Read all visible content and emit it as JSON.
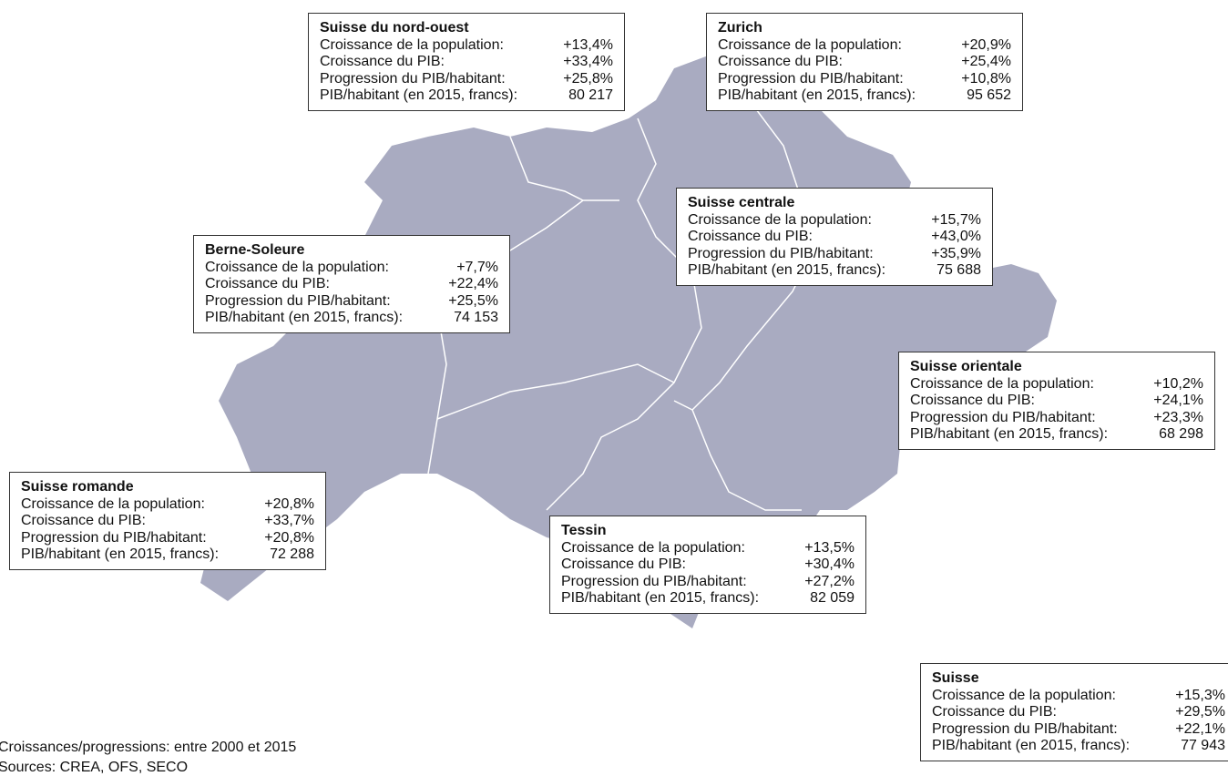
{
  "regions": [
    {
      "title": "Suisse du nord-ouest",
      "rows": [
        [
          "Croissance de la population:",
          "+13,4%"
        ],
        [
          "Croissance du PIB:",
          "+33,4%"
        ],
        [
          "Progression du PIB/habitant:",
          "+25,8%"
        ],
        [
          "PIB/habitant (en 2015, francs):",
          "80 217"
        ]
      ]
    },
    {
      "title": "Zurich",
      "rows": [
        [
          "Croissance de la population:",
          "+20,9%"
        ],
        [
          "Croissance du PIB:",
          "+25,4%"
        ],
        [
          "Progression du PIB/habitant:",
          "+10,8%"
        ],
        [
          "PIB/habitant (en 2015, francs):",
          "95 652"
        ]
      ]
    },
    {
      "title": "Suisse centrale",
      "rows": [
        [
          "Croissance de la population:",
          "+15,7%"
        ],
        [
          "Croissance du PIB:",
          "+43,0%"
        ],
        [
          "Progression du PIB/habitant:",
          "+35,9%"
        ],
        [
          "PIB/habitant (en 2015, francs):",
          "75 688"
        ]
      ]
    },
    {
      "title": "Berne-Soleure",
      "rows": [
        [
          "Croissance de la population:",
          "+7,7%"
        ],
        [
          "Croissance du PIB:",
          "+22,4%"
        ],
        [
          "Progression du PIB/habitant:",
          "+25,5%"
        ],
        [
          "PIB/habitant (en 2015, francs):",
          "74 153"
        ]
      ]
    },
    {
      "title": "Suisse orientale",
      "rows": [
        [
          "Croissance de la population:",
          "+10,2%"
        ],
        [
          "Croissance du PIB:",
          "+24,1%"
        ],
        [
          "Progression du PIB/habitant:",
          "+23,3%"
        ],
        [
          "PIB/habitant (en 2015, francs):",
          "68 298"
        ]
      ]
    },
    {
      "title": "Suisse romande",
      "rows": [
        [
          "Croissance de la population:",
          "+20,8%"
        ],
        [
          "Croissance du PIB:",
          "+33,7%"
        ],
        [
          "Progression du PIB/habitant:",
          "+20,8%"
        ],
        [
          "PIB/habitant (en 2015, francs):",
          "72 288"
        ]
      ]
    },
    {
      "title": "Tessin",
      "rows": [
        [
          "Croissance de la population:",
          "+13,5%"
        ],
        [
          "Croissance du PIB:",
          "+30,4%"
        ],
        [
          "Progression du PIB/habitant:",
          "+27,2%"
        ],
        [
          "PIB/habitant (en 2015, francs):",
          "82 059"
        ]
      ]
    },
    {
      "title": "Suisse",
      "rows": [
        [
          "Croissance de la population:",
          "+15,3%"
        ],
        [
          "Croissance du PIB:",
          "+29,5%"
        ],
        [
          "Progression du PIB/habitant:",
          "+22,1%"
        ],
        [
          "PIB/habitant (en 2015, francs):",
          "77 943"
        ]
      ]
    }
  ],
  "notes": [
    "Croissances/progressions: entre 2000 et 2015",
    "Sources: CREA, OFS, SECO"
  ]
}
